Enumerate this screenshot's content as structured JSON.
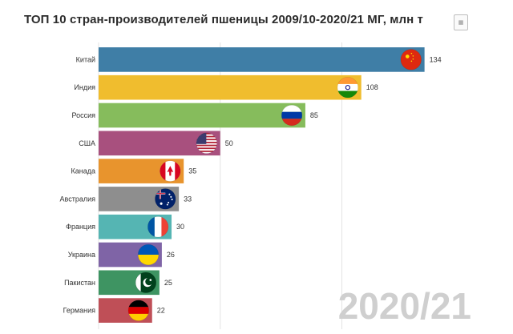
{
  "title": "ТОП 10 стран-производителей пшеницы 2009/10-2020/21 МГ, млн т",
  "export_icon": "image-file-icon",
  "period": "2020/21",
  "chart_data": {
    "type": "bar",
    "orientation": "horizontal",
    "title": "ТОП 10 стран-производителей пшеницы 2009/10-2020/21 МГ, млн т",
    "xlabel": "",
    "ylabel": "",
    "xlim": [
      0,
      145
    ],
    "grid": true,
    "legend": "none",
    "categories": [
      "Китай",
      "Индия",
      "Россия",
      "США",
      "Канада",
      "Австралия",
      "Франция",
      "Украина",
      "Пакистан",
      "Германия"
    ],
    "values": [
      134,
      108,
      85,
      50,
      35,
      33,
      30,
      26,
      25,
      22
    ],
    "colors": [
      "#3f7ea6",
      "#f0bd2e",
      "#86bc5c",
      "#a8507e",
      "#e8942d",
      "#8e8e8e",
      "#55b5b3",
      "#7f64a6",
      "#3e9462",
      "#bf4f57"
    ],
    "flags": [
      "china-flag-icon",
      "india-flag-icon",
      "russia-flag-icon",
      "usa-flag-icon",
      "canada-flag-icon",
      "australia-flag-icon",
      "france-flag-icon",
      "ukraine-flag-icon",
      "pakistan-flag-icon",
      "germany-flag-icon"
    ]
  }
}
